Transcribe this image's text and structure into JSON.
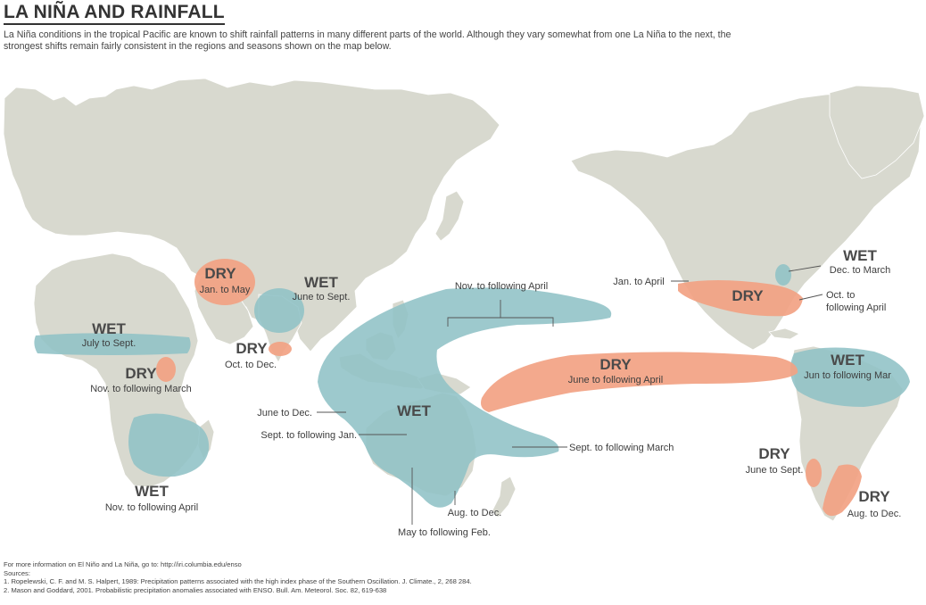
{
  "title": "LA NIÑA AND RAINFALL",
  "intro": "La Niña conditions in the tropical Pacific are known to shift rainfall patterns in many different parts of the world. Although they vary somewhat from one La Niña to the next, the strongest shifts remain fairly consistent in the regions and seasons shown on the map below.",
  "colors": {
    "wet": "#8fc1c6",
    "dry": "#f2a283",
    "land": "#d8d9cf",
    "ocean": "#ffffff"
  },
  "regions": {
    "middle_east": {
      "type": "DRY",
      "season": "Jan. to May"
    },
    "south_asia": {
      "type": "WET",
      "season": "June to Sept."
    },
    "southeast_india": {
      "type": "DRY",
      "season": "Oct. to Dec."
    },
    "sahel": {
      "type": "WET",
      "season": "July to Sept."
    },
    "east_africa": {
      "type": "DRY",
      "season": "Nov. to following March"
    },
    "southern_africa": {
      "type": "WET",
      "season": "Nov. to following April"
    },
    "maritime_continent": {
      "type": "WET",
      "seasons": [
        "Nov. to following April",
        "June to Dec.",
        "Sept. to following Jan.",
        "Sept. to following March",
        "Aug. to Dec.",
        "May to following Feb."
      ]
    },
    "central_pacific": {
      "type": "DRY",
      "season": "June to following April"
    },
    "southern_us": {
      "type": "DRY",
      "season": "Oct. to following April",
      "extra": "Jan. to April"
    },
    "ohio_valley": {
      "type": "WET",
      "season": "Dec. to March"
    },
    "northern_south_america": {
      "type": "WET",
      "season": "Jun to following Mar"
    },
    "chile": {
      "type": "DRY",
      "season": "June to Sept."
    },
    "argentina": {
      "type": "DRY",
      "season": "Aug. to Dec."
    }
  },
  "footer": {
    "more_info": "For more information on El Niño and La Niña, go to: http://iri.columbia.edu/enso",
    "sources_label": "Sources:",
    "source1": "1. Ropelewski, C. F. and M. S. Halpert, 1989: Precipitation patterns associated with the high index phase of the Southern Oscillation. J. Climate., 2, 268 284.",
    "source2": "2. Mason and Goddard, 2001. Probabilistic precipitation anomalies associated with ENSO. Bull. Am. Meteorol. Soc. 82, 619-638"
  }
}
